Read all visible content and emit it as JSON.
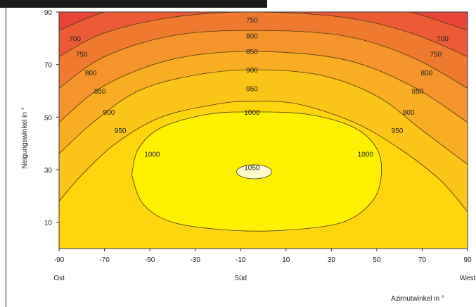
{
  "chart_data": {
    "type": "heatmap",
    "xlabel": "Azimutwinkel in °",
    "ylabel": "Neigungswinkel in °",
    "xlim": [
      -90,
      90
    ],
    "ylim": [
      0,
      90
    ],
    "x_ticks": [
      -90,
      -70,
      -50,
      -30,
      -10,
      10,
      30,
      50,
      70,
      90
    ],
    "y_ticks": [
      10,
      30,
      50,
      70,
      90
    ],
    "x_annotations": [
      {
        "x": -90,
        "label": "Ost"
      },
      {
        "x": -10,
        "label": "Süd"
      },
      {
        "x": 90,
        "label": "West"
      }
    ],
    "contour_levels": [
      700,
      750,
      800,
      850,
      900,
      950,
      1000,
      1050
    ],
    "contour_labels": [
      {
        "value": 750,
        "x": -5,
        "y": 87
      },
      {
        "value": 800,
        "x": -5,
        "y": 81
      },
      {
        "value": 850,
        "x": -5,
        "y": 75
      },
      {
        "value": 900,
        "x": -5,
        "y": 68
      },
      {
        "value": 950,
        "x": -5,
        "y": 61
      },
      {
        "value": 1000,
        "x": -5,
        "y": 52
      },
      {
        "value": 1050,
        "x": -5,
        "y": 31
      },
      {
        "value": 700,
        "x": -83,
        "y": 80
      },
      {
        "value": 750,
        "x": -80,
        "y": 74
      },
      {
        "value": 800,
        "x": -76,
        "y": 67
      },
      {
        "value": 850,
        "x": -72,
        "y": 60
      },
      {
        "value": 900,
        "x": -68,
        "y": 52
      },
      {
        "value": 950,
        "x": -63,
        "y": 45
      },
      {
        "value": 1000,
        "x": -49,
        "y": 36
      },
      {
        "value": 700,
        "x": 79,
        "y": 80
      },
      {
        "value": 750,
        "x": 76,
        "y": 74
      },
      {
        "value": 800,
        "x": 72,
        "y": 67
      },
      {
        "value": 850,
        "x": 68,
        "y": 60
      },
      {
        "value": 900,
        "x": 64,
        "y": 52
      },
      {
        "value": 950,
        "x": 59,
        "y": 45
      },
      {
        "value": 1000,
        "x": 45,
        "y": 36
      }
    ],
    "colors": {
      "700": "#e8443a",
      "750": "#ec5a36",
      "800": "#f07a30",
      "850": "#f4942a",
      "900": "#f8ad22",
      "950": "#fcc51a",
      "1000": "#ffd50e",
      "1050": "#fff000",
      "above_1050": "#fffacc"
    }
  }
}
